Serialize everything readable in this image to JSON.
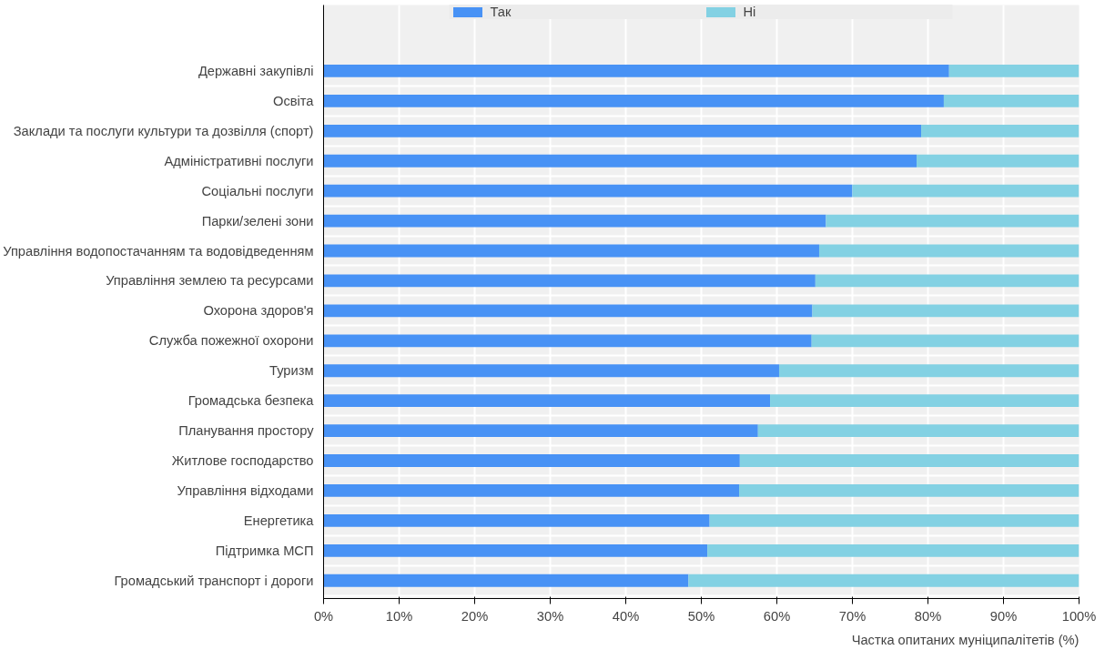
{
  "chart_data": {
    "type": "bar",
    "orientation": "horizontal",
    "stacked": true,
    "categories": [
      "Державні закупівлі",
      "Освіта",
      "Заклади та послуги культури та дозвілля (спорт)",
      "Адміністративні послуги",
      "Соціальні послуги",
      "Парки/зелені зони",
      "Управління водопостачанням та водовідведенням",
      "Управління землею та ресурсами",
      "Охорона здоров'я",
      "Служба пожежної охорони",
      "Туризм",
      "Громадська безпека",
      "Планування простору",
      "Житлове господарство",
      "Управління відходами",
      "Енергетика",
      "Підтримка МСП",
      "Громадський транспорт і дороги"
    ],
    "series": [
      {
        "name": "Так",
        "color": "#4892f5",
        "values": [
          82.8,
          82.1,
          79.1,
          78.5,
          70.0,
          66.5,
          65.6,
          65.1,
          64.7,
          64.6,
          60.3,
          59.1,
          57.5,
          55.1,
          55.0,
          51.1,
          50.8,
          48.3
        ]
      },
      {
        "name": "Ні",
        "color": "#83d1e3",
        "values": [
          17.2,
          17.9,
          20.9,
          21.5,
          30.0,
          33.5,
          34.4,
          34.9,
          35.3,
          35.4,
          39.7,
          40.9,
          42.5,
          44.9,
          45.0,
          48.9,
          49.2,
          51.7
        ]
      }
    ],
    "xlim": [
      0,
      100
    ],
    "xticks": [
      {
        "value": 0,
        "label": "0%"
      },
      {
        "value": 10,
        "label": "10%"
      },
      {
        "value": 20,
        "label": "20%"
      },
      {
        "value": 30,
        "label": "30%"
      },
      {
        "value": 40,
        "label": "40%"
      },
      {
        "value": 50,
        "label": "50%"
      },
      {
        "value": 60,
        "label": "60%"
      },
      {
        "value": 70,
        "label": "70%"
      },
      {
        "value": 80,
        "label": "80%"
      },
      {
        "value": 90,
        "label": "90%"
      },
      {
        "value": 100,
        "label": "100%"
      }
    ],
    "xlabel": "Частка опитаних муніципалітетів (%)",
    "grid": true,
    "legend": "top"
  }
}
